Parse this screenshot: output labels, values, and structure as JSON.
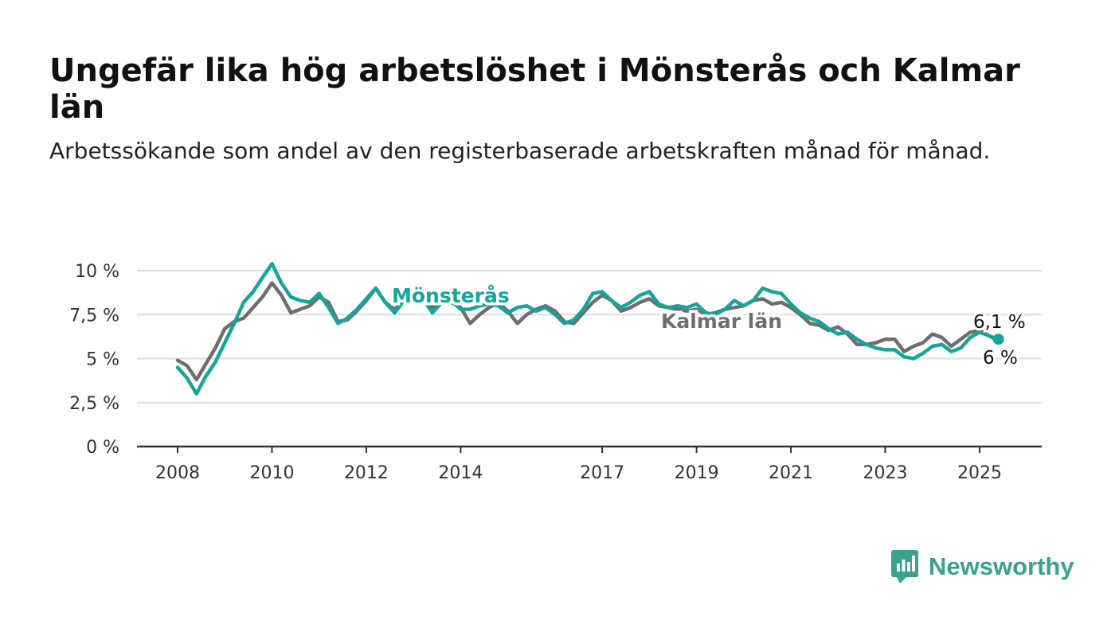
{
  "title": "Ungefär lika hög arbetslöshet i Mönsterås och Kalmar län",
  "subtitle": "Arbetssökande som andel av den registerbaserade arbetskraften månad för månad.",
  "brand": {
    "name": "Newsworthy",
    "color": "#3aa18f",
    "icon": "bar-chart-logo-icon"
  },
  "chart_data": {
    "type": "line",
    "ylim": [
      0,
      10.6
    ],
    "xlim": [
      2007.8,
      2026.3
    ],
    "grid": true,
    "y_ticks": [
      {
        "value": 0,
        "label": "0 %"
      },
      {
        "value": 2.5,
        "label": "2,5 %"
      },
      {
        "value": 5,
        "label": "5 %"
      },
      {
        "value": 7.5,
        "label": "7,5 %"
      },
      {
        "value": 10,
        "label": "10 %"
      }
    ],
    "x_ticks": [
      {
        "value": 2008,
        "label": "2008"
      },
      {
        "value": 2010,
        "label": "2010"
      },
      {
        "value": 2012,
        "label": "2012"
      },
      {
        "value": 2014,
        "label": "2014"
      },
      {
        "value": 2017,
        "label": "2017"
      },
      {
        "value": 2019,
        "label": "2019"
      },
      {
        "value": 2021,
        "label": "2021"
      },
      {
        "value": 2023,
        "label": "2023"
      },
      {
        "value": 2025,
        "label": "2025"
      }
    ],
    "series": [
      {
        "name": "Kalmar län",
        "color": "#6e6e70",
        "end_label": "6 %",
        "x": [
          2008.0,
          2008.2,
          2008.4,
          2008.6,
          2008.8,
          2009.0,
          2009.2,
          2009.4,
          2009.6,
          2009.8,
          2010.0,
          2010.2,
          2010.4,
          2010.6,
          2010.8,
          2011.0,
          2011.2,
          2011.4,
          2011.6,
          2011.8,
          2012.0,
          2012.2,
          2012.4,
          2012.6,
          2012.8,
          2013.0,
          2013.2,
          2013.4,
          2013.6,
          2013.8,
          2014.0,
          2014.2,
          2014.4,
          2014.6,
          2014.8,
          2015.0,
          2015.2,
          2015.4,
          2015.6,
          2015.8,
          2016.0,
          2016.2,
          2016.4,
          2016.6,
          2016.8,
          2017.0,
          2017.2,
          2017.4,
          2017.6,
          2017.8,
          2018.0,
          2018.2,
          2018.4,
          2018.6,
          2018.8,
          2019.0,
          2019.2,
          2019.4,
          2019.6,
          2019.8,
          2020.0,
          2020.2,
          2020.4,
          2020.6,
          2020.8,
          2021.0,
          2021.2,
          2021.4,
          2021.6,
          2021.8,
          2022.0,
          2022.2,
          2022.4,
          2022.6,
          2022.8,
          2023.0,
          2023.2,
          2023.4,
          2023.6,
          2023.8,
          2024.0,
          2024.2,
          2024.4,
          2024.6,
          2024.8,
          2025.0,
          2025.2,
          2025.4
        ],
        "y": [
          4.9,
          4.6,
          3.8,
          4.7,
          5.6,
          6.7,
          7.1,
          7.3,
          7.9,
          8.5,
          9.3,
          8.6,
          7.6,
          7.8,
          8.0,
          8.5,
          8.2,
          7.1,
          7.2,
          7.7,
          8.3,
          9.0,
          8.2,
          7.8,
          8.3,
          8.8,
          8.4,
          7.9,
          8.4,
          8.2,
          7.9,
          7.0,
          7.5,
          7.9,
          8.2,
          7.7,
          7.0,
          7.5,
          7.8,
          8.0,
          7.7,
          7.1,
          7.0,
          7.6,
          8.2,
          8.6,
          8.3,
          7.7,
          7.9,
          8.2,
          8.4,
          8.0,
          7.9,
          7.8,
          7.7,
          7.8,
          7.5,
          7.6,
          7.8,
          7.9,
          8.0,
          8.3,
          8.4,
          8.1,
          8.2,
          7.9,
          7.5,
          7.0,
          6.9,
          6.6,
          6.8,
          6.4,
          5.8,
          5.8,
          5.9,
          6.1,
          6.1,
          5.4,
          5.7,
          5.9,
          6.4,
          6.2,
          5.7,
          6.1,
          6.5,
          6.6,
          6.3,
          6.0
        ]
      },
      {
        "name": "Mönsterås",
        "color": "#16a699",
        "end_label": "6,1 %",
        "x": [
          2008.0,
          2008.2,
          2008.4,
          2008.6,
          2008.8,
          2009.0,
          2009.2,
          2009.4,
          2009.6,
          2009.8,
          2010.0,
          2010.2,
          2010.4,
          2010.6,
          2010.8,
          2011.0,
          2011.2,
          2011.4,
          2011.6,
          2011.8,
          2012.0,
          2012.2,
          2012.4,
          2012.6,
          2012.8,
          2013.0,
          2013.2,
          2013.4,
          2013.6,
          2013.8,
          2014.0,
          2014.2,
          2014.4,
          2014.6,
          2014.8,
          2015.0,
          2015.2,
          2015.4,
          2015.6,
          2015.8,
          2016.0,
          2016.2,
          2016.4,
          2016.6,
          2016.8,
          2017.0,
          2017.2,
          2017.4,
          2017.6,
          2017.8,
          2018.0,
          2018.2,
          2018.4,
          2018.6,
          2018.8,
          2019.0,
          2019.2,
          2019.4,
          2019.6,
          2019.8,
          2020.0,
          2020.2,
          2020.4,
          2020.6,
          2020.8,
          2021.0,
          2021.2,
          2021.4,
          2021.6,
          2021.8,
          2022.0,
          2022.2,
          2022.4,
          2022.6,
          2022.8,
          2023.0,
          2023.2,
          2023.4,
          2023.6,
          2023.8,
          2024.0,
          2024.2,
          2024.4,
          2024.6,
          2024.8,
          2025.0,
          2025.2,
          2025.4
        ],
        "y": [
          4.5,
          3.9,
          3.0,
          4.0,
          4.8,
          5.9,
          7.0,
          8.2,
          8.8,
          9.6,
          10.4,
          9.3,
          8.5,
          8.3,
          8.2,
          8.7,
          7.9,
          7.0,
          7.3,
          7.8,
          8.4,
          9.0,
          8.2,
          7.6,
          8.3,
          8.9,
          8.4,
          7.6,
          8.2,
          8.3,
          7.8,
          7.8,
          8.0,
          8.1,
          8.0,
          7.6,
          7.9,
          8.0,
          7.7,
          7.9,
          7.5,
          7.0,
          7.2,
          7.8,
          8.7,
          8.8,
          8.3,
          7.9,
          8.2,
          8.6,
          8.8,
          8.1,
          7.9,
          8.0,
          7.9,
          8.1,
          7.6,
          7.5,
          7.8,
          8.3,
          8.0,
          8.3,
          9.0,
          8.8,
          8.7,
          8.1,
          7.6,
          7.3,
          7.1,
          6.7,
          6.4,
          6.5,
          6.1,
          5.8,
          5.6,
          5.5,
          5.5,
          5.1,
          5.0,
          5.3,
          5.7,
          5.8,
          5.4,
          5.6,
          6.2,
          6.5,
          6.3,
          6.1
        ]
      }
    ],
    "annotations": [
      {
        "text": "Mönsterås",
        "series": "Mönsterås"
      },
      {
        "text": "Kalmar län",
        "series": "Kalmar län"
      }
    ]
  }
}
